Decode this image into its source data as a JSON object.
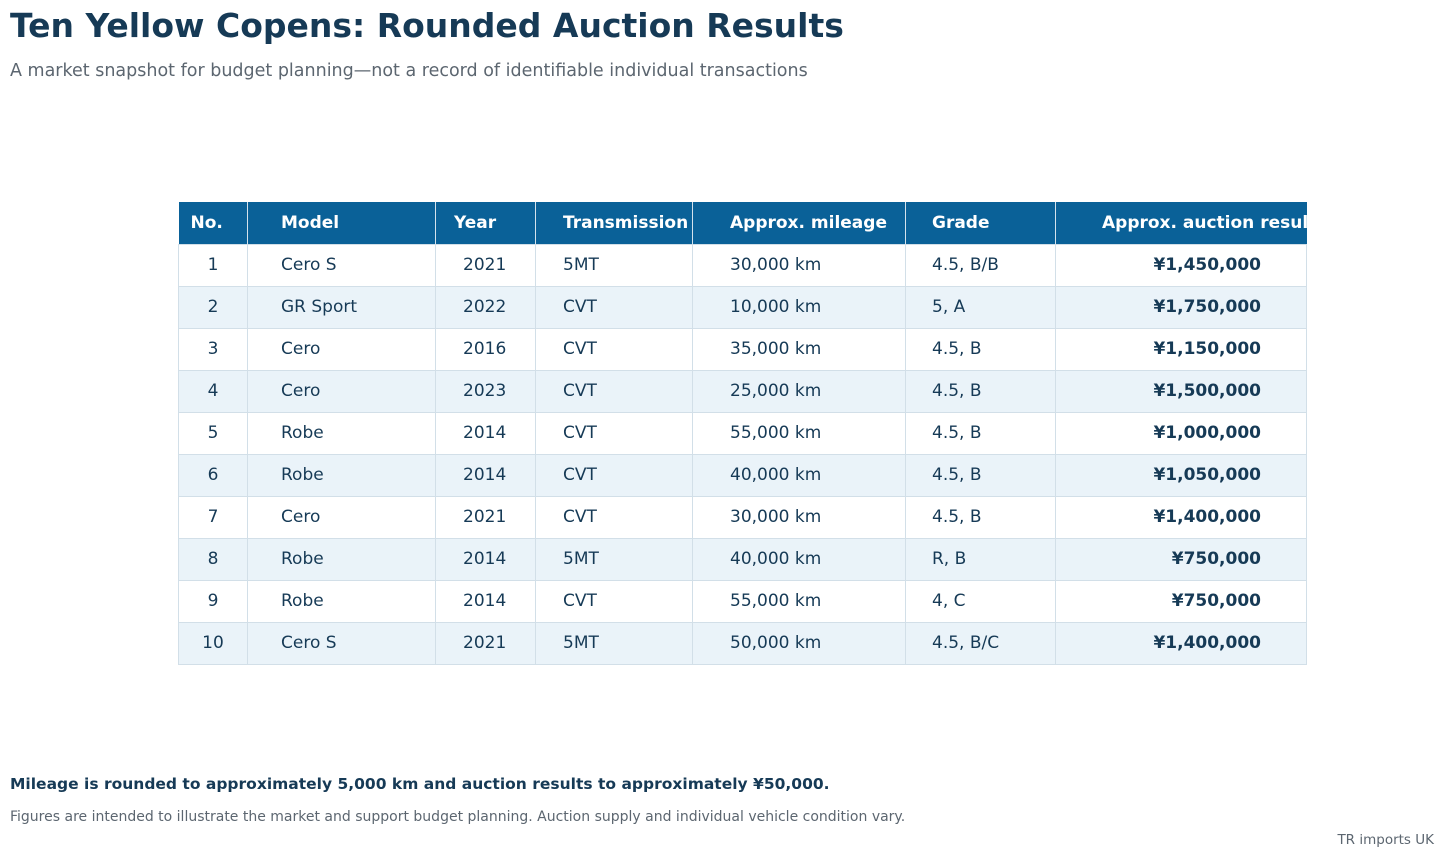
{
  "title": "Ten Yellow Copens: Rounded Auction Results",
  "subtitle": "A market snapshot for budget planning—not a record of identifiable individual transactions",
  "colors": {
    "header_background": "#0a6198",
    "header_text": "#ffffff",
    "stripe": "#eaf3f9",
    "text": "#163a56",
    "muted_text": "#5c6670"
  },
  "chart_data": {
    "type": "table",
    "columns": [
      "No.",
      "Model",
      "Year",
      "Transmission",
      "Approx. mileage",
      "Grade",
      "Approx. auction result"
    ],
    "rows": [
      [
        "1",
        "Cero S",
        "2021",
        "5MT",
        "30,000 km",
        "4.5, B/B",
        "¥1,450,000"
      ],
      [
        "2",
        "GR Sport",
        "2022",
        "CVT",
        "10,000 km",
        "5, A",
        "¥1,750,000"
      ],
      [
        "3",
        "Cero",
        "2016",
        "CVT",
        "35,000 km",
        "4.5, B",
        "¥1,150,000"
      ],
      [
        "4",
        "Cero",
        "2023",
        "CVT",
        "25,000 km",
        "4.5, B",
        "¥1,500,000"
      ],
      [
        "5",
        "Robe",
        "2014",
        "CVT",
        "55,000 km",
        "4.5, B",
        "¥1,000,000"
      ],
      [
        "6",
        "Robe",
        "2014",
        "CVT",
        "40,000 km",
        "4.5, B",
        "¥1,050,000"
      ],
      [
        "7",
        "Cero",
        "2021",
        "CVT",
        "30,000 km",
        "4.5, B",
        "¥1,400,000"
      ],
      [
        "8",
        "Robe",
        "2014",
        "5MT",
        "40,000 km",
        "R, B",
        "¥750,000"
      ],
      [
        "9",
        "Robe",
        "2014",
        "CVT",
        "55,000 km",
        "4, C",
        "¥750,000"
      ],
      [
        "10",
        "Cero S",
        "2021",
        "5MT",
        "50,000 km",
        "4.5, B/C",
        "¥1,400,000"
      ]
    ]
  },
  "notes": {
    "rounding": "Mileage is rounded to approximately 5,000 km and auction results to approximately ¥50,000.",
    "disclaimer": "Figures are intended to illustrate the market and support budget planning. Auction supply and individual vehicle condition vary."
  },
  "credit": "TR imports UK"
}
